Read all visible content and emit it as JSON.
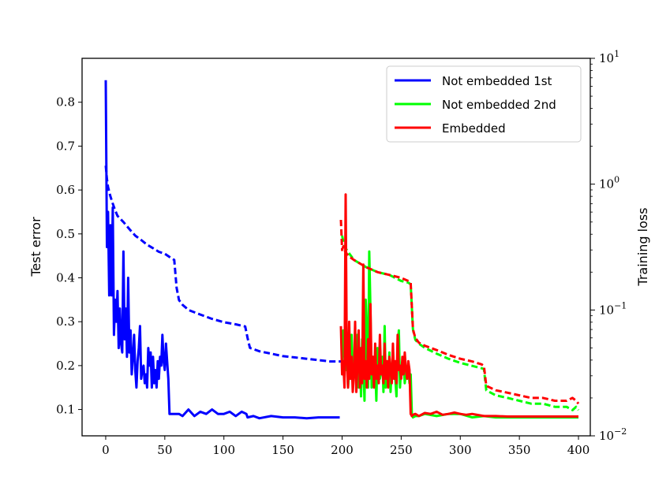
{
  "chart_data": {
    "type": "line",
    "xlabel": "",
    "ylabel_left": "Test error",
    "ylabel_right": "Training loss",
    "xlim": [
      -20,
      410
    ],
    "ylim_left": [
      0.04,
      0.9
    ],
    "ylim_right": [
      0.01,
      10
    ],
    "right_scale": "log",
    "grid": false,
    "legend_position": "top-right",
    "x_ticks": [
      0,
      50,
      100,
      150,
      200,
      250,
      300,
      350,
      400
    ],
    "left_ticks": [
      0.1,
      0.2,
      0.3,
      0.4,
      0.5,
      0.6,
      0.7,
      0.8
    ],
    "right_ticks": [
      {
        "value": 0.01,
        "base": "10",
        "exp": "−2"
      },
      {
        "value": 0.1,
        "base": "10",
        "exp": "−1"
      },
      {
        "value": 1,
        "base": "10",
        "exp": "0"
      },
      {
        "value": 10,
        "base": "10",
        "exp": "1"
      }
    ],
    "series": [
      {
        "name": "Not embedded 1st",
        "color": "#0000ff",
        "test_error": {
          "x": [
            0,
            1,
            2,
            3,
            4,
            5,
            6,
            7,
            8,
            9,
            10,
            11,
            12,
            13,
            14,
            15,
            16,
            17,
            18,
            19,
            20,
            21,
            22,
            23,
            24,
            25,
            26,
            27,
            28,
            29,
            30,
            31,
            32,
            33,
            34,
            35,
            36,
            37,
            38,
            39,
            40,
            41,
            42,
            43,
            44,
            45,
            46,
            47,
            48,
            49,
            50,
            51,
            52,
            53,
            54,
            55,
            56,
            57,
            58,
            59,
            60,
            62,
            65,
            70,
            75,
            80,
            85,
            90,
            95,
            100,
            105,
            110,
            115,
            119,
            120,
            125,
            130,
            140,
            150,
            160,
            170,
            180,
            190,
            198
          ],
          "y": [
            0.85,
            0.47,
            0.55,
            0.36,
            0.52,
            0.36,
            0.56,
            0.27,
            0.35,
            0.3,
            0.37,
            0.24,
            0.33,
            0.25,
            0.23,
            0.46,
            0.26,
            0.33,
            0.22,
            0.4,
            0.23,
            0.28,
            0.18,
            0.22,
            0.27,
            0.19,
            0.15,
            0.21,
            0.24,
            0.29,
            0.17,
            0.19,
            0.2,
            0.16,
            0.18,
            0.15,
            0.24,
            0.2,
            0.23,
            0.15,
            0.22,
            0.16,
            0.19,
            0.15,
            0.21,
            0.17,
            0.22,
            0.2,
            0.27,
            0.21,
            0.19,
            0.25,
            0.21,
            0.17,
            0.09,
            0.09,
            0.09,
            0.09,
            0.09,
            0.09,
            0.09,
            0.09,
            0.085,
            0.1,
            0.085,
            0.095,
            0.09,
            0.1,
            0.09,
            0.09,
            0.095,
            0.085,
            0.095,
            0.09,
            0.082,
            0.085,
            0.08,
            0.085,
            0.082,
            0.082,
            0.08,
            0.082,
            0.082,
            0.082
          ]
        },
        "training_loss": {
          "x": [
            0,
            1,
            2,
            4,
            6,
            8,
            10,
            15,
            20,
            25,
            30,
            35,
            40,
            45,
            50,
            55,
            58,
            60,
            62,
            65,
            70,
            80,
            90,
            100,
            110,
            118,
            120,
            122,
            130,
            140,
            150,
            160,
            170,
            180,
            190,
            200
          ],
          "y": [
            1.4,
            1.1,
            0.95,
            0.8,
            0.7,
            0.62,
            0.56,
            0.5,
            0.44,
            0.39,
            0.36,
            0.33,
            0.31,
            0.29,
            0.28,
            0.26,
            0.25,
            0.15,
            0.12,
            0.11,
            0.1,
            0.092,
            0.085,
            0.08,
            0.077,
            0.074,
            0.06,
            0.05,
            0.047,
            0.045,
            0.043,
            0.042,
            0.041,
            0.04,
            0.039,
            0.039
          ]
        }
      },
      {
        "name": "Not embedded 2nd",
        "color": "#00ff00",
        "test_error": {
          "x": [
            200,
            201,
            202,
            203,
            204,
            205,
            206,
            207,
            208,
            209,
            210,
            211,
            212,
            213,
            214,
            215,
            216,
            217,
            218,
            219,
            220,
            221,
            222,
            223,
            224,
            225,
            226,
            227,
            228,
            229,
            230,
            231,
            232,
            233,
            234,
            235,
            236,
            237,
            238,
            239,
            240,
            241,
            242,
            243,
            244,
            245,
            246,
            247,
            248,
            249,
            250,
            251,
            252,
            253,
            254,
            255,
            256,
            257,
            258,
            259,
            260,
            262,
            265,
            270,
            280,
            290,
            300,
            310,
            320,
            330,
            340,
            350,
            360,
            370,
            380,
            390,
            400
          ],
          "y": [
            0.2,
            0.28,
            0.23,
            0.19,
            0.24,
            0.15,
            0.19,
            0.17,
            0.27,
            0.18,
            0.21,
            0.2,
            0.17,
            0.27,
            0.15,
            0.22,
            0.13,
            0.26,
            0.2,
            0.12,
            0.35,
            0.27,
            0.15,
            0.46,
            0.33,
            0.15,
            0.22,
            0.21,
            0.2,
            0.12,
            0.24,
            0.2,
            0.17,
            0.19,
            0.22,
            0.14,
            0.29,
            0.15,
            0.2,
            0.17,
            0.23,
            0.14,
            0.19,
            0.22,
            0.2,
            0.17,
            0.13,
            0.24,
            0.28,
            0.15,
            0.2,
            0.18,
            0.21,
            0.16,
            0.19,
            0.18,
            0.2,
            0.16,
            0.18,
            0.09,
            0.082,
            0.085,
            0.085,
            0.09,
            0.085,
            0.09,
            0.09,
            0.082,
            0.085,
            0.082,
            0.082,
            0.082,
            0.082,
            0.082,
            0.082,
            0.082,
            0.082
          ]
        },
        "training_loss": {
          "x": [
            200,
            202,
            205,
            210,
            220,
            230,
            240,
            250,
            256,
            258,
            260,
            262,
            265,
            270,
            280,
            290,
            300,
            310,
            315,
            320,
            322,
            330,
            340,
            350,
            360,
            370,
            380,
            390,
            395,
            398,
            400
          ],
          "y": [
            0.39,
            0.32,
            0.29,
            0.25,
            0.22,
            0.2,
            0.19,
            0.17,
            0.165,
            0.16,
            0.07,
            0.058,
            0.054,
            0.05,
            0.045,
            0.041,
            0.038,
            0.036,
            0.035,
            0.034,
            0.023,
            0.021,
            0.02,
            0.019,
            0.018,
            0.018,
            0.017,
            0.017,
            0.016,
            0.017,
            0.016
          ]
        }
      },
      {
        "name": "Embedded",
        "color": "#ff0000",
        "test_error": {
          "x": [
            199,
            200,
            201,
            202,
            203,
            204,
            205,
            206,
            207,
            208,
            209,
            210,
            211,
            212,
            213,
            214,
            215,
            216,
            217,
            218,
            219,
            220,
            221,
            222,
            223,
            224,
            225,
            226,
            227,
            228,
            229,
            230,
            231,
            232,
            233,
            234,
            235,
            236,
            237,
            238,
            239,
            240,
            241,
            242,
            243,
            244,
            245,
            246,
            247,
            248,
            249,
            250,
            251,
            252,
            253,
            254,
            255,
            256,
            257,
            258,
            259,
            260,
            262,
            265,
            270,
            275,
            280,
            285,
            290,
            295,
            300,
            305,
            310,
            320,
            330,
            340,
            350,
            360,
            370,
            380,
            390,
            400
          ],
          "y": [
            0.29,
            0.18,
            0.21,
            0.15,
            0.59,
            0.21,
            0.15,
            0.3,
            0.17,
            0.22,
            0.14,
            0.18,
            0.3,
            0.14,
            0.2,
            0.28,
            0.15,
            0.24,
            0.16,
            0.43,
            0.17,
            0.21,
            0.15,
            0.26,
            0.17,
            0.34,
            0.18,
            0.22,
            0.15,
            0.25,
            0.17,
            0.2,
            0.16,
            0.27,
            0.18,
            0.2,
            0.16,
            0.25,
            0.17,
            0.21,
            0.15,
            0.22,
            0.19,
            0.16,
            0.25,
            0.17,
            0.21,
            0.16,
            0.27,
            0.19,
            0.2,
            0.17,
            0.22,
            0.18,
            0.23,
            0.19,
            0.17,
            0.21,
            0.19,
            0.09,
            0.085,
            0.088,
            0.09,
            0.085,
            0.092,
            0.09,
            0.095,
            0.088,
            0.09,
            0.093,
            0.09,
            0.088,
            0.09,
            0.085,
            0.085,
            0.084,
            0.084,
            0.084,
            0.084,
            0.084,
            0.084,
            0.084
          ]
        },
        "training_loss": {
          "x": [
            199,
            200,
            201,
            202,
            205,
            210,
            220,
            230,
            240,
            250,
            256,
            258,
            260,
            262,
            265,
            270,
            280,
            290,
            300,
            310,
            318,
            320,
            322,
            330,
            340,
            350,
            360,
            370,
            380,
            390,
            395,
            398,
            400
          ],
          "y": [
            0.52,
            0.3,
            0.32,
            0.3,
            0.27,
            0.25,
            0.22,
            0.2,
            0.19,
            0.18,
            0.17,
            0.165,
            0.07,
            0.06,
            0.055,
            0.052,
            0.048,
            0.044,
            0.041,
            0.039,
            0.037,
            0.036,
            0.025,
            0.023,
            0.022,
            0.021,
            0.02,
            0.02,
            0.019,
            0.019,
            0.02,
            0.019,
            0.018
          ]
        }
      }
    ]
  }
}
